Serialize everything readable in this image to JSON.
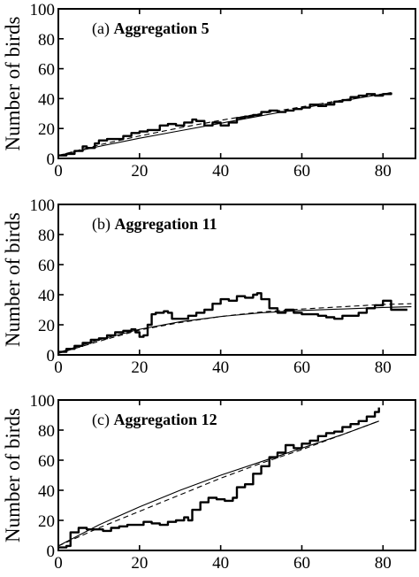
{
  "chart_data": [
    {
      "type": "line",
      "panel_tag": "(a)",
      "panel_name": "Aggregation 5",
      "ylabel": "Number of birds",
      "xlabel": "",
      "xlim": [
        0,
        88
      ],
      "ylim": [
        0,
        100
      ],
      "x_ticks": [
        0,
        20,
        40,
        60,
        80
      ],
      "x_tick_labels": [
        "0",
        "20",
        "40",
        "60",
        "80"
      ],
      "y_ticks": [
        0,
        20,
        40,
        60,
        80,
        100
      ],
      "y_tick_labels": [
        "0",
        "20",
        "40",
        "60",
        "80",
        "100"
      ],
      "series": [
        {
          "style": "observed-step",
          "x": [
            0,
            2,
            4,
            6,
            7,
            9,
            10,
            12,
            14,
            16,
            18,
            20,
            22,
            24,
            25,
            27,
            29,
            31,
            33,
            34,
            36,
            38,
            40,
            42,
            44,
            46,
            48,
            50,
            52,
            54,
            56,
            58,
            60,
            62,
            64,
            66,
            68,
            70,
            72,
            74,
            76,
            78,
            80,
            82
          ],
          "y": [
            2,
            3,
            5,
            8,
            7,
            10,
            12,
            13,
            13,
            15,
            17,
            18,
            19,
            19,
            22,
            23,
            22,
            24,
            26,
            25,
            22,
            24,
            22,
            24,
            27,
            28,
            29,
            31,
            32,
            31,
            32,
            33,
            34,
            36,
            35,
            36,
            38,
            39,
            41,
            42,
            43,
            42,
            43,
            44
          ]
        },
        {
          "style": "fit-solid",
          "x": [
            0,
            10,
            20,
            30,
            40,
            50,
            60,
            70,
            82
          ],
          "y": [
            2,
            8,
            13.5,
            18.5,
            23.5,
            28.5,
            33.5,
            38.5,
            44
          ]
        },
        {
          "style": "fit-dashed",
          "x": [
            0,
            10,
            20,
            30,
            40,
            50,
            60,
            70,
            82
          ],
          "y": [
            2,
            9,
            15,
            20.5,
            25.5,
            30,
            34.5,
            39,
            44
          ]
        }
      ]
    },
    {
      "type": "line",
      "panel_tag": "(b)",
      "panel_name": "Aggregation 11",
      "ylabel": "Number of birds",
      "xlabel": "",
      "xlim": [
        0,
        88
      ],
      "ylim": [
        0,
        100
      ],
      "x_ticks": [
        0,
        20,
        40,
        60,
        80
      ],
      "x_tick_labels": [
        "0",
        "20",
        "40",
        "60",
        "80"
      ],
      "y_ticks": [
        0,
        20,
        40,
        60,
        80,
        100
      ],
      "y_tick_labels": [
        "0",
        "20",
        "40",
        "60",
        "80",
        "100"
      ],
      "series": [
        {
          "style": "observed-step",
          "x": [
            0,
            2,
            4,
            6,
            8,
            10,
            12,
            14,
            16,
            18,
            19,
            20,
            21,
            22,
            23,
            24,
            26,
            27,
            28,
            30,
            32,
            34,
            36,
            38,
            40,
            42,
            44,
            46,
            48,
            49,
            50,
            52,
            54,
            56,
            58,
            60,
            62,
            64,
            66,
            68,
            70,
            72,
            74,
            76,
            78,
            80,
            82,
            86
          ],
          "y": [
            2,
            4,
            6,
            8,
            10,
            11,
            13,
            15,
            16,
            17,
            15,
            12,
            13,
            20,
            27,
            28,
            29,
            28,
            24,
            24,
            26,
            28,
            30,
            34,
            37,
            36,
            39,
            38,
            40,
            41,
            37,
            31,
            28,
            30,
            28,
            27,
            27,
            26,
            25,
            24,
            26,
            26,
            28,
            31,
            33,
            36,
            30,
            30
          ]
        },
        {
          "style": "fit-solid",
          "x": [
            0,
            10,
            20,
            30,
            40,
            50,
            60,
            70,
            80,
            87
          ],
          "y": [
            1.5,
            10,
            17,
            22,
            25.5,
            28,
            29.5,
            30.5,
            31.5,
            32
          ]
        },
        {
          "style": "fit-dashed",
          "x": [
            0,
            10,
            20,
            30,
            40,
            50,
            60,
            70,
            80,
            87
          ],
          "y": [
            1,
            9,
            16.5,
            21.5,
            25.5,
            28.5,
            30.5,
            32,
            33.5,
            34
          ]
        }
      ]
    },
    {
      "type": "line",
      "panel_tag": "(c)",
      "panel_name": "Aggregation 12",
      "ylabel": "Number of birds",
      "xlabel": "",
      "xlim": [
        0,
        88
      ],
      "ylim": [
        0,
        100
      ],
      "x_ticks": [
        0,
        20,
        40,
        60,
        80
      ],
      "x_tick_labels": [
        "0",
        "20",
        "40",
        "60",
        "80"
      ],
      "y_ticks": [
        0,
        20,
        40,
        60,
        80,
        100
      ],
      "y_tick_labels": [
        "0",
        "20",
        "40",
        "60",
        "80",
        "100"
      ],
      "series": [
        {
          "style": "observed-step",
          "x": [
            0,
            2,
            3,
            5,
            7,
            9,
            11,
            13,
            15,
            17,
            19,
            21,
            23,
            25,
            27,
            29,
            31,
            32,
            33,
            35,
            37,
            39,
            41,
            43,
            44,
            46,
            48,
            50,
            52,
            54,
            56,
            58,
            60,
            62,
            64,
            66,
            68,
            70,
            72,
            74,
            76,
            78,
            79
          ],
          "y": [
            2,
            3,
            12,
            15,
            14,
            14,
            13,
            15,
            16,
            17,
            17,
            19,
            18,
            17,
            19,
            20,
            22,
            20,
            27,
            32,
            35,
            34,
            33,
            35,
            42,
            44,
            51,
            56,
            62,
            65,
            70,
            68,
            71,
            73,
            76,
            78,
            79,
            82,
            84,
            86,
            89,
            92,
            95
          ]
        },
        {
          "style": "fit-solid",
          "x": [
            0,
            10,
            20,
            30,
            40,
            50,
            60,
            70,
            79
          ],
          "y": [
            3,
            17,
            29,
            40,
            50,
            59,
            68,
            77,
            86
          ]
        },
        {
          "style": "fit-dashed",
          "x": [
            0,
            10,
            20,
            30,
            40,
            50,
            60,
            70,
            79
          ],
          "y": [
            3,
            15,
            26,
            37,
            48,
            58,
            67,
            77,
            86
          ]
        }
      ]
    }
  ]
}
